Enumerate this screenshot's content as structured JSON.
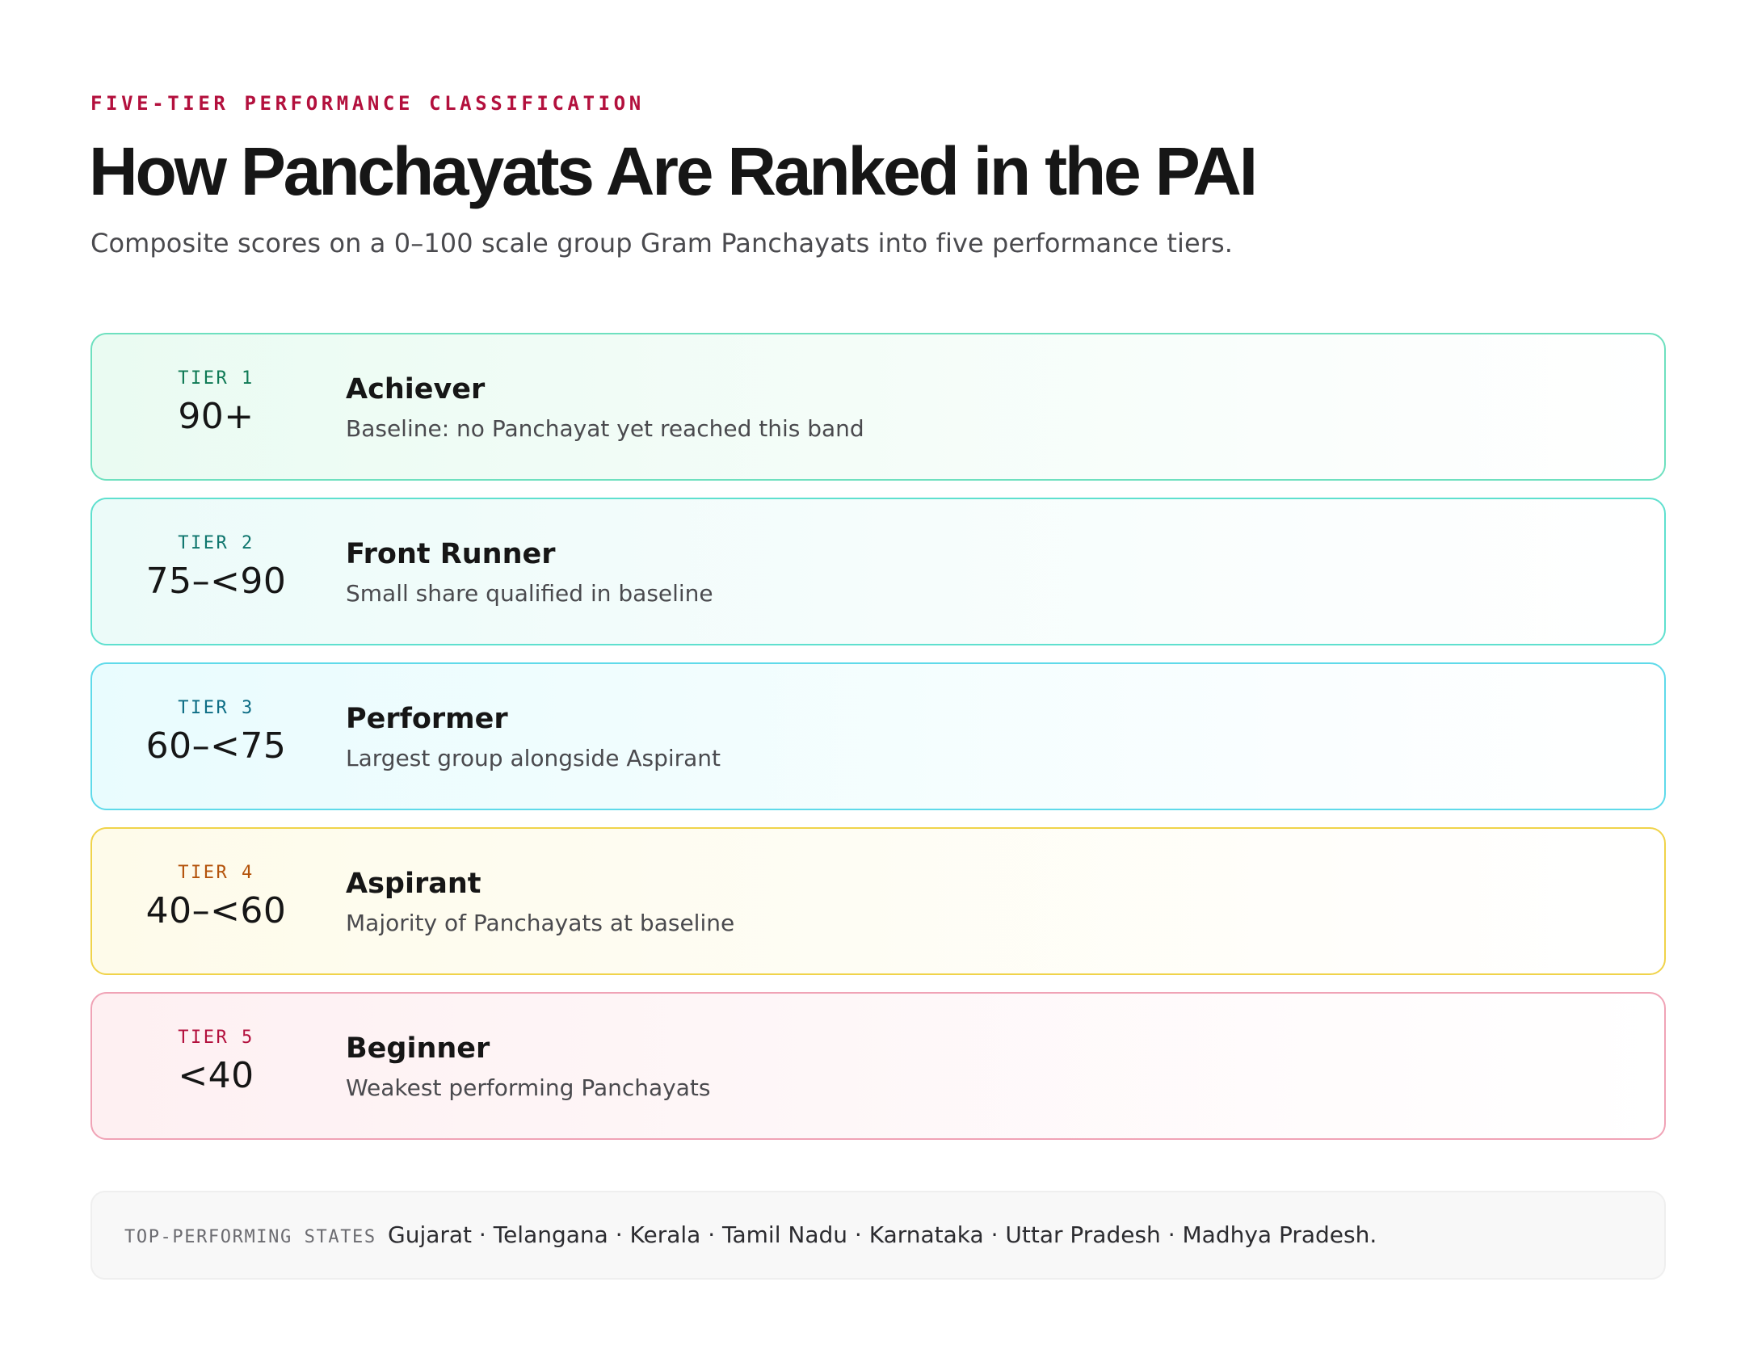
{
  "header": {
    "eyebrow": "FIVE-TIER PERFORMANCE CLASSIFICATION",
    "title": "How Panchayats Are Ranked in the PAI",
    "subtitle": "Composite scores on a 0–100 scale group Gram Panchayats into five performance tiers."
  },
  "tiers": [
    {
      "label": "TIER 1",
      "range": "90+",
      "name": "Achiever",
      "description": "Baseline: no Panchayat yet reached this band",
      "colors": {
        "border": "#6ee0bf",
        "label": "#0f7a55",
        "bg": "#eafbf2"
      }
    },
    {
      "label": "TIER 2",
      "range": "75–<90",
      "name": "Front Runner",
      "description": "Small share qualified in baseline",
      "colors": {
        "border": "#5fe0cf",
        "label": "#0f766e",
        "bg": "#ecfbf9"
      }
    },
    {
      "label": "TIER 3",
      "range": "60–<75",
      "name": "Performer",
      "description": "Largest group alongside Aspirant",
      "colors": {
        "border": "#5fdaea",
        "label": "#0e6e86",
        "bg": "#e9fcfe"
      }
    },
    {
      "label": "TIER 4",
      "range": "40–<60",
      "name": "Aspirant",
      "description": "Majority of Panchayats at baseline",
      "colors": {
        "border": "#f0d34a",
        "label": "#b4530b",
        "bg": "#fefbea"
      }
    },
    {
      "label": "TIER 5",
      "range": "<40",
      "name": "Beginner",
      "description": "Weakest performing Panchayats",
      "colors": {
        "border": "#f0a3b6",
        "label": "#b3103d",
        "bg": "#fef0f2"
      }
    }
  ],
  "top_states": {
    "label": "TOP-PERFORMING STATES",
    "list": "Gujarat · Telangana · Kerala · Tamil Nadu · Karnataka · Uttar Pradesh · Madhya Pradesh."
  }
}
